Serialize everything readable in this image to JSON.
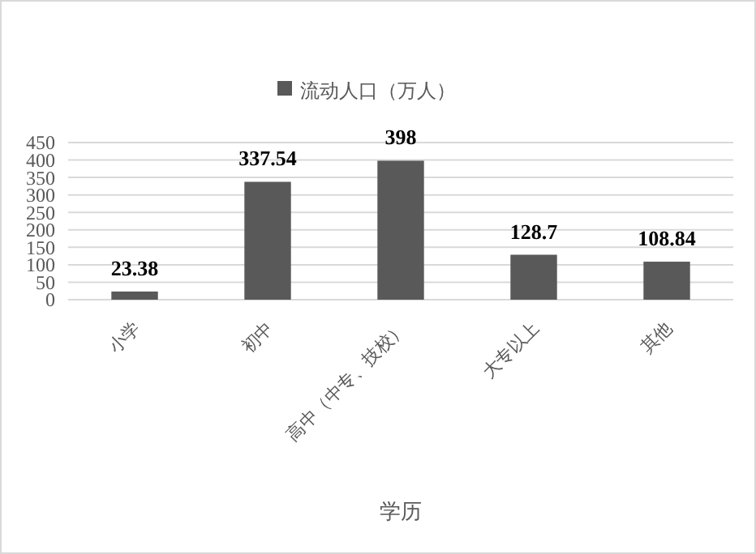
{
  "chart_data": {
    "type": "bar",
    "xlabel": "学历",
    "categories": [
      "小学",
      "初中",
      "高中（中专、技校）",
      "大专以上",
      "其他"
    ],
    "series": [
      {
        "name": "流动人口（万人）",
        "color": "#595959",
        "values": [
          23.38,
          337.54,
          398,
          128.7,
          108.84
        ]
      }
    ],
    "ylim": [
      0,
      450
    ],
    "yticks": [
      0,
      50,
      100,
      150,
      200,
      250,
      300,
      350,
      400,
      450
    ],
    "grid": "y",
    "legend": "top",
    "data_labels": true
  }
}
